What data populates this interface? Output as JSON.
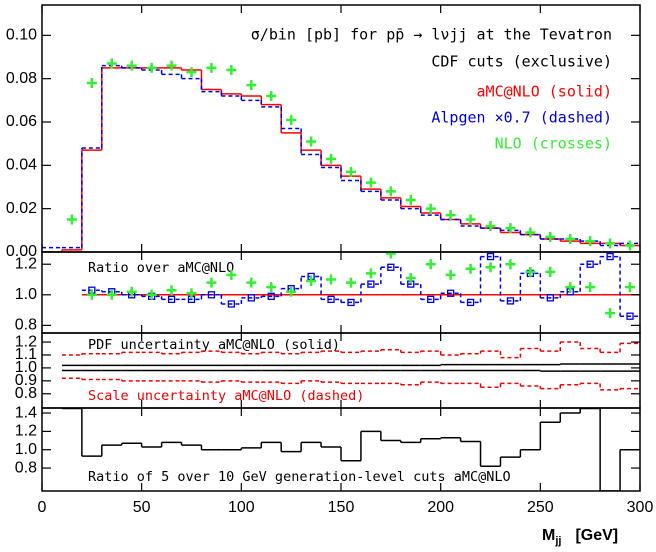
{
  "chart_data": [
    {
      "type": "histogram",
      "title": "σ/bin [pb] for pp̄ → lνjj at the Tevatron",
      "subtitle": "CDF cuts (exclusive)",
      "bins": [
        0,
        10,
        20,
        30,
        40,
        50,
        60,
        70,
        80,
        90,
        100,
        110,
        120,
        130,
        140,
        150,
        160,
        170,
        180,
        190,
        200,
        210,
        220,
        230,
        240,
        250,
        260,
        270,
        280,
        290,
        300
      ],
      "xlim": [
        0,
        300
      ],
      "ylim": [
        0,
        0.114
      ],
      "yticks": [
        {
          "value": 0,
          "label": "0.00"
        },
        0.02,
        0.04,
        0.06,
        0.08,
        {
          "value": 0.1,
          "label": "0.10"
        }
      ],
      "series": [
        {
          "name": "aMC@NLO (solid)",
          "color": "#ff0000",
          "dash": false,
          "values": [
            0,
            0.001,
            0.047,
            0.085,
            0.085,
            0.085,
            0.085,
            0.084,
            0.075,
            0.073,
            0.072,
            0.068,
            0.055,
            0.047,
            0.04,
            0.035,
            0.029,
            0.025,
            0.021,
            0.018,
            0.015,
            0.013,
            0.011,
            0.009,
            0.008,
            0.006,
            0.005,
            0.004,
            0.004,
            0.003
          ]
        },
        {
          "name": "Alpgen ×0.7 (dashed)",
          "color": "#0000e0",
          "dash": true,
          "values": [
            0.002,
            0.002,
            0.048,
            0.086,
            0.085,
            0.084,
            0.082,
            0.08,
            0.074,
            0.072,
            0.07,
            0.067,
            0.057,
            0.045,
            0.039,
            0.033,
            0.028,
            0.024,
            0.02,
            0.017,
            0.015,
            0.012,
            0.011,
            0.01,
            0.008,
            0.006,
            0.006,
            0.005,
            0.003,
            0.004
          ]
        },
        {
          "name": "NLO (crosses)",
          "color": "#33ee33",
          "marker": "cross",
          "x": [
            15,
            25,
            35,
            45,
            55,
            65,
            75,
            85,
            95,
            105,
            115,
            125,
            135,
            145,
            155,
            165,
            175,
            185,
            195,
            205,
            215,
            225,
            235,
            245,
            255,
            265,
            275,
            285,
            295
          ],
          "values": [
            0.015,
            0.078,
            0.087,
            0.086,
            0.085,
            0.086,
            0.083,
            0.085,
            0.084,
            0.077,
            0.072,
            0.061,
            0.051,
            0.043,
            0.037,
            0.032,
            0.028,
            0.024,
            0.02,
            0.017,
            0.015,
            0.012,
            0.011,
            0.009,
            0.007,
            0.006,
            0.005,
            0.004,
            0.003
          ]
        }
      ]
    },
    {
      "type": "histogram",
      "title": "Ratio over aMC@NLO",
      "bins": [
        20,
        30,
        40,
        50,
        60,
        70,
        80,
        90,
        100,
        110,
        120,
        130,
        140,
        150,
        160,
        170,
        180,
        190,
        200,
        210,
        220,
        230,
        240,
        250,
        260,
        270,
        280,
        290,
        300
      ],
      "xlim": [
        0,
        300
      ],
      "ylim": [
        0.75,
        1.28
      ],
      "yticks": [
        0.8,
        {
          "value": 1,
          "label": "1.0"
        },
        1.2
      ],
      "series": [
        {
          "color": "#ff0000",
          "dash": false,
          "values": [
            1,
            1,
            1,
            1,
            1,
            1,
            1,
            1,
            1,
            1,
            1,
            1,
            1,
            1,
            1,
            1,
            1,
            1,
            1,
            1,
            1,
            1,
            1,
            1,
            1,
            1,
            1,
            1
          ]
        },
        {
          "color": "#0000e0",
          "dash": true,
          "marker": "square",
          "values": [
            1.03,
            1.02,
            1.0,
            0.99,
            0.97,
            0.97,
            1.0,
            0.94,
            0.98,
            0.99,
            1.04,
            1.12,
            0.97,
            0.95,
            1.07,
            1.18,
            1.07,
            0.97,
            1.01,
            0.95,
            1.25,
            0.96,
            1.14,
            0.98,
            1.02,
            1.2,
            1.25,
            0.86
          ]
        },
        {
          "color": "#33ee33",
          "marker": "cross",
          "x": [
            25,
            35,
            45,
            55,
            65,
            75,
            85,
            95,
            105,
            115,
            125,
            135,
            145,
            155,
            165,
            175,
            185,
            195,
            205,
            215,
            225,
            235,
            245,
            255,
            265,
            275,
            285,
            295
          ],
          "values": [
            1.0,
            1.0,
            1.02,
            1.0,
            1.03,
            1.01,
            1.08,
            1.13,
            1.08,
            1.05,
            1.02,
            1.09,
            1.1,
            1.08,
            1.14,
            1.27,
            1.11,
            1.2,
            1.13,
            1.17,
            1.18,
            1.2,
            1.15,
            1.15,
            1.05,
            1.05,
            0.88,
            1.05
          ]
        }
      ]
    },
    {
      "type": "histogram",
      "annotations": [
        {
          "text": "PDF uncertainty aMC@NLO (solid)",
          "color": "#000000"
        },
        {
          "text": "Scale uncertainty aMC@NLO (dashed)",
          "color": "#ee0000"
        }
      ],
      "bins": [
        10,
        20,
        30,
        40,
        50,
        60,
        70,
        80,
        90,
        100,
        110,
        120,
        130,
        140,
        150,
        160,
        170,
        180,
        190,
        200,
        210,
        220,
        230,
        240,
        250,
        260,
        270,
        280,
        290,
        300
      ],
      "xlim": [
        0,
        300
      ],
      "ylim": [
        0.69,
        1.27
      ],
      "yticks": [
        0.8,
        0.9,
        {
          "value": 1,
          "label": "1.0"
        },
        1.1,
        1.2
      ],
      "series": [
        {
          "color": "#000000",
          "dash": false,
          "values": [
            1.02,
            1.02,
            1.02,
            1.02,
            1.02,
            1.02,
            1.02,
            1.02,
            1.02,
            1.02,
            1.02,
            1.02,
            1.02,
            1.02,
            1.02,
            1.02,
            1.02,
            1.02,
            1.02,
            1.025,
            1.025,
            1.025,
            1.025,
            1.025,
            1.025,
            1.03,
            1.03,
            1.03,
            1.03
          ]
        },
        {
          "color": "#000000",
          "dash": false,
          "values": [
            0.98,
            0.98,
            0.98,
            0.98,
            0.98,
            0.98,
            0.98,
            0.98,
            0.98,
            0.98,
            0.98,
            0.98,
            0.98,
            0.98,
            0.98,
            0.98,
            0.98,
            0.98,
            0.98,
            0.98,
            0.98,
            0.98,
            0.98,
            0.98,
            0.975,
            0.975,
            0.975,
            0.975,
            0.975
          ]
        },
        {
          "color": "#ee0000",
          "dash": true,
          "values": [
            1.1,
            1.11,
            1.11,
            1.12,
            1.12,
            1.11,
            1.12,
            1.13,
            1.12,
            1.11,
            1.12,
            1.11,
            1.12,
            1.13,
            1.12,
            1.13,
            1.14,
            1.12,
            1.13,
            1.1,
            1.11,
            1.13,
            1.08,
            1.15,
            1.13,
            1.2,
            1.15,
            1.12,
            1.19
          ]
        },
        {
          "color": "#ee0000",
          "dash": true,
          "values": [
            0.92,
            0.91,
            0.91,
            0.9,
            0.9,
            0.9,
            0.9,
            0.89,
            0.9,
            0.89,
            0.89,
            0.88,
            0.9,
            0.89,
            0.88,
            0.88,
            0.88,
            0.87,
            0.89,
            0.88,
            0.88,
            0.85,
            0.88,
            0.86,
            0.84,
            0.87,
            0.88,
            0.83,
            0.84
          ]
        }
      ]
    },
    {
      "type": "histogram",
      "title": "Ratio of 5 over 10 GeV generation-level cuts aMC@NLO",
      "bins": [
        10,
        20,
        30,
        40,
        50,
        60,
        70,
        80,
        90,
        100,
        110,
        120,
        130,
        140,
        150,
        160,
        170,
        180,
        190,
        200,
        210,
        220,
        230,
        240,
        250,
        260,
        270,
        280,
        290,
        300
      ],
      "xlim": [
        0,
        300
      ],
      "ylim": [
        0.55,
        1.455
      ],
      "yticks": [
        0.8,
        {
          "value": 1,
          "label": "1.0"
        },
        1.2,
        1.4
      ],
      "xticks": [
        0,
        50,
        100,
        150,
        200,
        250,
        300
      ],
      "xlabel": "M",
      "xlabel_sub": "jj",
      "xlabel_unit": "[GeV]",
      "series": [
        {
          "color": "#000000",
          "dash": false,
          "values": [
            1.45,
            0.93,
            1.05,
            1.07,
            1.03,
            1.08,
            1.05,
            1.0,
            1.0,
            1.02,
            1.08,
            0.98,
            1.08,
            1.03,
            0.88,
            1.2,
            1.1,
            1.08,
            1.12,
            1.13,
            1.09,
            0.82,
            0.92,
            1.0,
            1.3,
            1.4,
            1.45,
            0.55,
            1.0
          ]
        }
      ]
    }
  ]
}
